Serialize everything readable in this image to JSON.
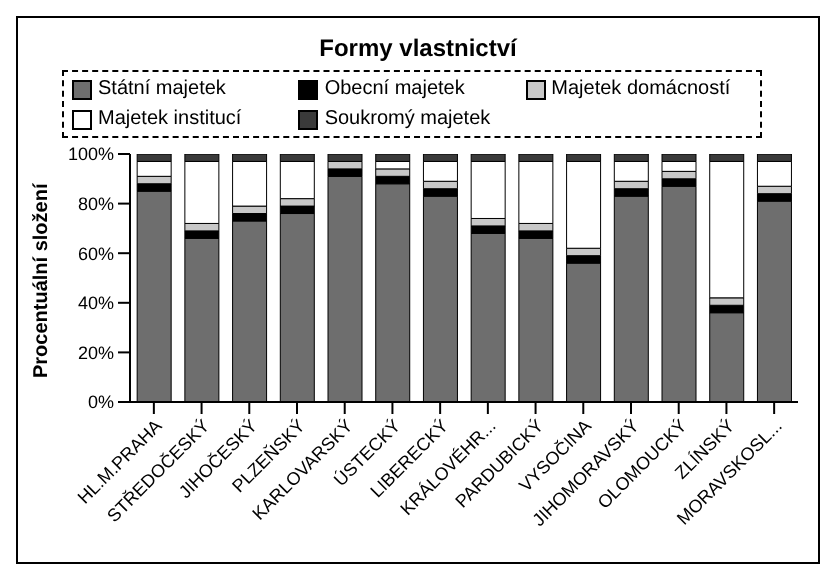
{
  "chart_data": {
    "type": "bar",
    "stacked": true,
    "title": "Formy vlastnictví",
    "ylabel": "Procentuální složení",
    "categories": [
      "HL.M.PRAHA",
      "STŘEDOČESKÝ",
      "JIHOČESKÝ",
      "PLZEŇSKÝ",
      "KARLOVARSKÝ",
      "ÚSTECKÝ",
      "LIBERECKÝ",
      "KRÁLOVÉHR...",
      "PARDUBICKÝ",
      "VYSOČINA",
      "JIHOMORAVSKÝ",
      "OLOMOUCKÝ",
      "ZLÍNSKÝ",
      "MORAVSKOSL..."
    ],
    "series": [
      {
        "name": "Státní majetek",
        "color": "#6e6e6e",
        "values": [
          85,
          66,
          73,
          76,
          91,
          88,
          83,
          68,
          66,
          56,
          83,
          87,
          36,
          81
        ]
      },
      {
        "name": "Obecní majetek",
        "color": "#000000",
        "values": [
          3,
          3,
          3,
          3,
          3,
          3,
          3,
          3,
          3,
          3,
          3,
          3,
          3,
          3
        ]
      },
      {
        "name": "Majetek domácností",
        "color": "#c8c8c8",
        "values": [
          3,
          3,
          3,
          3,
          3,
          3,
          3,
          3,
          3,
          3,
          3,
          3,
          3,
          3
        ]
      },
      {
        "name": "Majetek institucí",
        "color": "#ffffff",
        "values": [
          6,
          25,
          18,
          15,
          0,
          3,
          8,
          23,
          25,
          35,
          8,
          4,
          55,
          10
        ]
      },
      {
        "name": "Soukromý majetek",
        "color": "#3a3a3a",
        "values": [
          3,
          3,
          3,
          3,
          3,
          3,
          3,
          3,
          3,
          3,
          3,
          3,
          3,
          3
        ]
      }
    ],
    "ylim": [
      0,
      100
    ],
    "yticks": [
      {
        "value": 0,
        "label": "0%"
      },
      {
        "value": 20,
        "label": "20%"
      },
      {
        "value": 40,
        "label": "40%"
      },
      {
        "value": 60,
        "label": "60%"
      },
      {
        "value": 80,
        "label": "80%"
      },
      {
        "value": 100,
        "label": "100%"
      }
    ],
    "grid": false,
    "legend": "top"
  }
}
